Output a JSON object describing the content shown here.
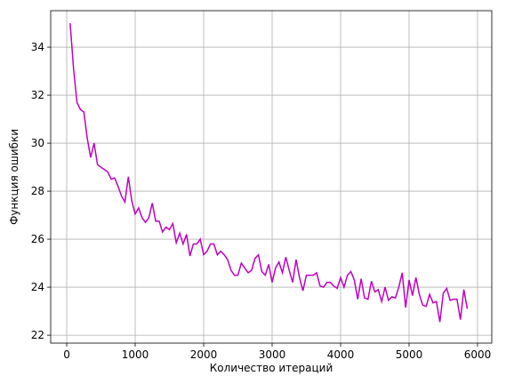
{
  "chart_data": {
    "type": "line",
    "x_label": "Количество итераций",
    "y_label": "Функция ошибки",
    "x": [
      50,
      100,
      150,
      200,
      250,
      300,
      350,
      400,
      450,
      500,
      550,
      600,
      650,
      700,
      750,
      800,
      850,
      900,
      950,
      1000,
      1050,
      1100,
      1150,
      1200,
      1250,
      1300,
      1350,
      1400,
      1450,
      1500,
      1550,
      1600,
      1650,
      1700,
      1750,
      1800,
      1850,
      1900,
      1950,
      2000,
      2050,
      2100,
      2150,
      2200,
      2250,
      2300,
      2350,
      2400,
      2450,
      2500,
      2550,
      2600,
      2650,
      2700,
      2750,
      2800,
      2850,
      2900,
      2950,
      3000,
      3050,
      3100,
      3150,
      3200,
      3250,
      3300,
      3350,
      3400,
      3450,
      3500,
      3550,
      3600,
      3650,
      3700,
      3750,
      3800,
      3850,
      3900,
      3950,
      4000,
      4050,
      4100,
      4150,
      4200,
      4250,
      4300,
      4350,
      4400,
      4450,
      4500,
      4550,
      4600,
      4650,
      4700,
      4750,
      4800,
      4850,
      4900,
      4950,
      5000,
      5050,
      5100,
      5150,
      5200,
      5250,
      5300,
      5350,
      5400,
      5450,
      5500,
      5550,
      5600,
      5650,
      5700,
      5750,
      5800,
      5850
    ],
    "series": [
      {
        "color": "#bf00bf",
        "values": [
          35.0,
          33.1,
          31.7,
          31.4,
          31.3,
          30.2,
          29.4,
          30.0,
          29.1,
          29.0,
          28.9,
          28.8,
          28.5,
          28.55,
          28.2,
          27.8,
          27.55,
          28.6,
          27.6,
          27.05,
          27.3,
          26.9,
          26.7,
          26.9,
          27.5,
          26.75,
          26.75,
          26.3,
          26.5,
          26.4,
          26.65,
          25.85,
          26.25,
          25.8,
          26.2,
          25.3,
          25.8,
          25.8,
          26.0,
          25.35,
          25.5,
          25.8,
          25.8,
          25.35,
          25.5,
          25.35,
          25.15,
          24.7,
          24.5,
          24.5,
          25.0,
          24.8,
          24.6,
          24.7,
          25.2,
          25.35,
          24.65,
          24.5,
          24.95,
          24.2,
          24.8,
          25.05,
          24.6,
          25.25,
          24.7,
          24.2,
          25.15,
          24.4,
          23.85,
          24.5,
          24.5,
          24.5,
          24.6,
          24.05,
          24.0,
          24.2,
          24.2,
          24.05,
          23.95,
          24.4,
          24.0,
          24.5,
          24.65,
          24.3,
          23.5,
          24.35,
          23.55,
          23.5,
          24.25,
          23.8,
          23.9,
          23.4,
          24.0,
          23.45,
          23.6,
          23.55,
          24.0,
          24.6,
          23.15,
          24.3,
          23.65,
          24.4,
          23.7,
          23.25,
          23.2,
          23.7,
          23.35,
          23.4,
          22.55,
          23.75,
          23.95,
          23.45,
          23.5,
          23.5,
          22.65,
          23.9,
          23.1
        ]
      }
    ],
    "xlim": [
      -234,
      6208
    ],
    "ylim": [
      21.67,
      35.52
    ],
    "xticks": [
      0,
      1000,
      2000,
      3000,
      4000,
      5000,
      6000
    ],
    "yticks": [
      22,
      24,
      26,
      28,
      30,
      32,
      34
    ],
    "grid": true
  }
}
